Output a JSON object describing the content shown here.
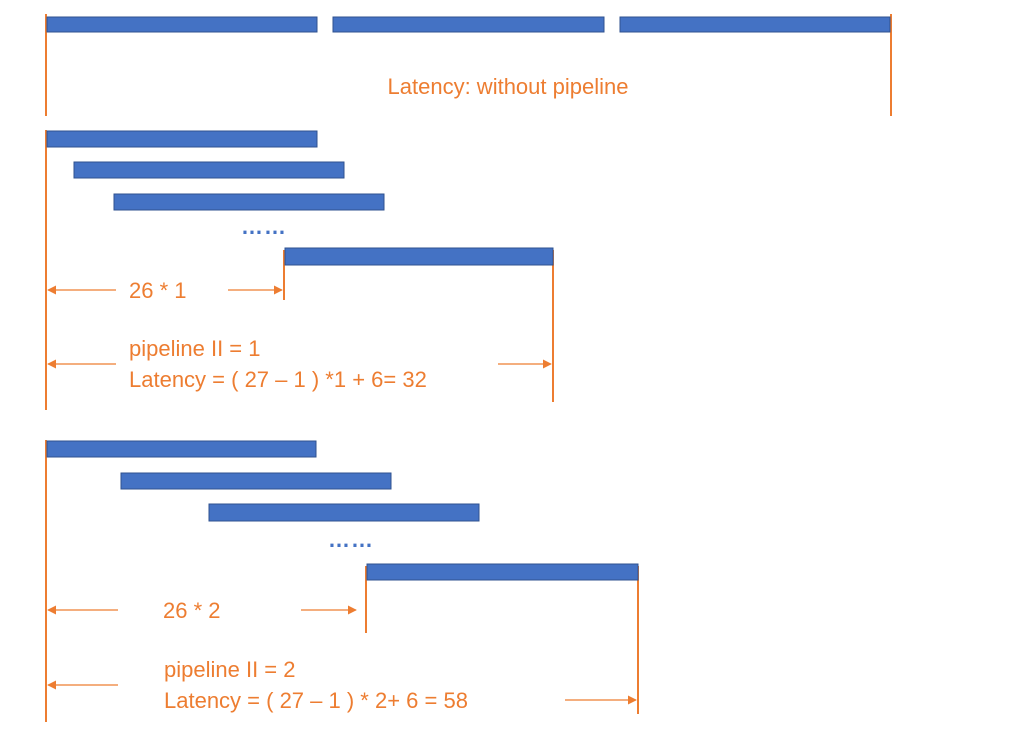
{
  "colors": {
    "bar_fill": "#4472C4",
    "bar_stroke": "#2F528F",
    "line": "#ED7D31",
    "text": "#ED7D31"
  },
  "section_no_pipeline": {
    "latency_label": "Latency: without pipeline"
  },
  "section_ii1": {
    "ellipsis": "……",
    "span_label": "26 * 1",
    "ii_label": "pipeline II = 1",
    "latency_label": "Latency = ( 27 – 1 ) *1 + 6= 32"
  },
  "section_ii2": {
    "ellipsis": "……",
    "span_label": "26 * 2",
    "ii_label": "pipeline II = 2",
    "latency_label": "Latency = ( 27 – 1 ) * 2+ 6 = 58"
  }
}
